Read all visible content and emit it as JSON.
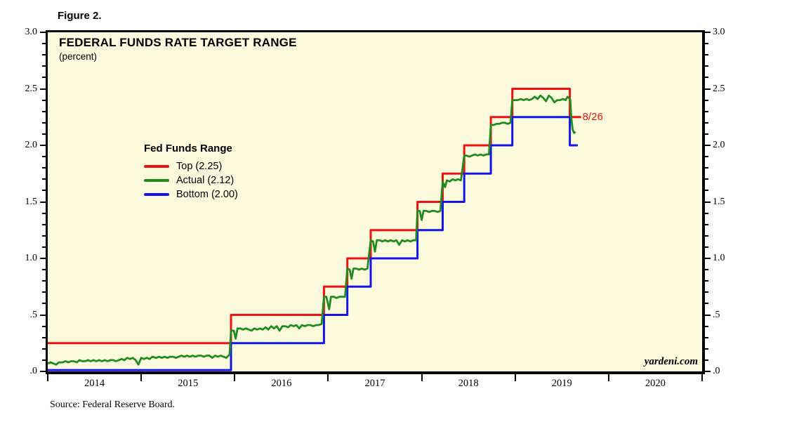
{
  "figure": {
    "label": "Figure 2."
  },
  "chart": {
    "title": "FEDERAL FUNDS RATE TARGET RANGE",
    "subtitle": "(percent)",
    "watermark": "yardeni.com",
    "source": "Source: Federal Reserve Board."
  },
  "legend": {
    "heading": "Fed Funds Range",
    "items": [
      {
        "label": "Top (2.25)",
        "color": "#f01010"
      },
      {
        "label": "Actual (2.12)",
        "color": "#1e8c1e"
      },
      {
        "label": "Bottom (2.00)",
        "color": "#1414f0"
      }
    ]
  },
  "chart_data": {
    "type": "line",
    "title": "FEDERAL FUNDS RATE TARGET RANGE (percent)",
    "background_color": "#fcfadc",
    "frame_color": "#000000",
    "grid": false,
    "x_axis": {
      "range": [
        2014,
        2021
      ],
      "tick_years": [
        2014,
        2015,
        2016,
        2017,
        2018,
        2019,
        2020,
        2021
      ],
      "year_labels": [
        "2014",
        "2015",
        "2016",
        "2017",
        "2018",
        "2019",
        "2020"
      ]
    },
    "y_axis": {
      "range": [
        0,
        3
      ],
      "minor_step": 0.1,
      "sides": "both",
      "major_ticks": [
        {
          "value": 3.0,
          "label": "3.0"
        },
        {
          "value": 2.5,
          "label": "2.5"
        },
        {
          "value": 2.0,
          "label": "2.0"
        },
        {
          "value": 1.5,
          "label": "1.5"
        },
        {
          "value": 1.0,
          "label": "1.0"
        },
        {
          "value": 0.5,
          "label": ".5"
        },
        {
          "value": 0.0,
          "label": ".0"
        }
      ]
    },
    "annotation": {
      "label": "8/26",
      "x": 2019.72,
      "y": 2.25,
      "color": "#f01010"
    },
    "series": [
      {
        "name": "Top",
        "current": 2.25,
        "color": "#f01010",
        "width": 3,
        "points": [
          [
            2014.0,
            0.25
          ],
          [
            2015.96,
            0.25
          ],
          [
            2015.96,
            0.5
          ],
          [
            2016.955,
            0.5
          ],
          [
            2016.955,
            0.75
          ],
          [
            2017.205,
            0.75
          ],
          [
            2017.205,
            1.0
          ],
          [
            2017.455,
            1.0
          ],
          [
            2017.455,
            1.25
          ],
          [
            2017.955,
            1.25
          ],
          [
            2017.955,
            1.5
          ],
          [
            2018.225,
            1.5
          ],
          [
            2018.225,
            1.75
          ],
          [
            2018.455,
            1.75
          ],
          [
            2018.455,
            2.0
          ],
          [
            2018.74,
            2.0
          ],
          [
            2018.74,
            2.25
          ],
          [
            2018.97,
            2.25
          ],
          [
            2018.97,
            2.5
          ],
          [
            2019.585,
            2.5
          ],
          [
            2019.585,
            2.25
          ],
          [
            2019.705,
            2.25
          ]
        ]
      },
      {
        "name": "Bottom",
        "current": 2.0,
        "color": "#1414f0",
        "width": 3,
        "points": [
          [
            2014.0,
            0.012
          ],
          [
            2015.96,
            0.012
          ],
          [
            2015.96,
            0.25
          ],
          [
            2016.955,
            0.25
          ],
          [
            2016.955,
            0.5
          ],
          [
            2017.205,
            0.5
          ],
          [
            2017.205,
            0.75
          ],
          [
            2017.455,
            0.75
          ],
          [
            2017.455,
            1.0
          ],
          [
            2017.955,
            1.0
          ],
          [
            2017.955,
            1.25
          ],
          [
            2018.225,
            1.25
          ],
          [
            2018.225,
            1.5
          ],
          [
            2018.455,
            1.5
          ],
          [
            2018.455,
            1.75
          ],
          [
            2018.74,
            1.75
          ],
          [
            2018.74,
            2.0
          ],
          [
            2018.97,
            2.0
          ],
          [
            2018.97,
            2.25
          ],
          [
            2019.585,
            2.25
          ],
          [
            2019.585,
            2.0
          ],
          [
            2019.67,
            2.0
          ]
        ]
      },
      {
        "name": "Actual",
        "current": 2.12,
        "color": "#1e8c1e",
        "width": 2.8,
        "points": [
          [
            2014.0,
            0.07
          ],
          [
            2014.03,
            0.08
          ],
          [
            2014.06,
            0.07
          ],
          [
            2014.09,
            0.06
          ],
          [
            2014.12,
            0.08
          ],
          [
            2014.16,
            0.08
          ],
          [
            2014.19,
            0.09
          ],
          [
            2014.22,
            0.08
          ],
          [
            2014.25,
            0.09
          ],
          [
            2014.28,
            0.09
          ],
          [
            2014.31,
            0.08
          ],
          [
            2014.34,
            0.1
          ],
          [
            2014.37,
            0.09
          ],
          [
            2014.4,
            0.09
          ],
          [
            2014.43,
            0.1
          ],
          [
            2014.46,
            0.09
          ],
          [
            2014.49,
            0.1
          ],
          [
            2014.52,
            0.09
          ],
          [
            2014.55,
            0.1
          ],
          [
            2014.58,
            0.09
          ],
          [
            2014.61,
            0.1
          ],
          [
            2014.64,
            0.09
          ],
          [
            2014.67,
            0.1
          ],
          [
            2014.7,
            0.1
          ],
          [
            2014.73,
            0.09
          ],
          [
            2014.76,
            0.1
          ],
          [
            2014.79,
            0.11
          ],
          [
            2014.82,
            0.1
          ],
          [
            2014.85,
            0.12
          ],
          [
            2014.88,
            0.11
          ],
          [
            2014.91,
            0.12
          ],
          [
            2014.94,
            0.1
          ],
          [
            2014.97,
            0.06
          ],
          [
            2015.0,
            0.12
          ],
          [
            2015.03,
            0.11
          ],
          [
            2015.06,
            0.12
          ],
          [
            2015.09,
            0.11
          ],
          [
            2015.12,
            0.13
          ],
          [
            2015.16,
            0.12
          ],
          [
            2015.19,
            0.13
          ],
          [
            2015.22,
            0.12
          ],
          [
            2015.25,
            0.13
          ],
          [
            2015.28,
            0.12
          ],
          [
            2015.31,
            0.13
          ],
          [
            2015.34,
            0.13
          ],
          [
            2015.37,
            0.12
          ],
          [
            2015.4,
            0.13
          ],
          [
            2015.43,
            0.14
          ],
          [
            2015.46,
            0.13
          ],
          [
            2015.49,
            0.14
          ],
          [
            2015.52,
            0.13
          ],
          [
            2015.55,
            0.14
          ],
          [
            2015.58,
            0.13
          ],
          [
            2015.61,
            0.14
          ],
          [
            2015.64,
            0.14
          ],
          [
            2015.67,
            0.13
          ],
          [
            2015.7,
            0.14
          ],
          [
            2015.73,
            0.14
          ],
          [
            2015.76,
            0.12
          ],
          [
            2015.79,
            0.14
          ],
          [
            2015.82,
            0.13
          ],
          [
            2015.85,
            0.14
          ],
          [
            2015.88,
            0.13
          ],
          [
            2015.91,
            0.12
          ],
          [
            2015.945,
            0.15
          ],
          [
            2015.96,
            0.36
          ],
          [
            2015.99,
            0.36
          ],
          [
            2016.01,
            0.29
          ],
          [
            2016.03,
            0.38
          ],
          [
            2016.06,
            0.38
          ],
          [
            2016.09,
            0.37
          ],
          [
            2016.12,
            0.38
          ],
          [
            2016.15,
            0.37
          ],
          [
            2016.18,
            0.36
          ],
          [
            2016.21,
            0.38
          ],
          [
            2016.24,
            0.37
          ],
          [
            2016.27,
            0.38
          ],
          [
            2016.3,
            0.37
          ],
          [
            2016.33,
            0.39
          ],
          [
            2016.36,
            0.37
          ],
          [
            2016.39,
            0.4
          ],
          [
            2016.42,
            0.38
          ],
          [
            2016.45,
            0.4
          ],
          [
            2016.48,
            0.36
          ],
          [
            2016.51,
            0.4
          ],
          [
            2016.54,
            0.4
          ],
          [
            2016.57,
            0.39
          ],
          [
            2016.6,
            0.41
          ],
          [
            2016.63,
            0.4
          ],
          [
            2016.66,
            0.41
          ],
          [
            2016.69,
            0.38
          ],
          [
            2016.72,
            0.41
          ],
          [
            2016.75,
            0.4
          ],
          [
            2016.78,
            0.41
          ],
          [
            2016.81,
            0.41
          ],
          [
            2016.84,
            0.4
          ],
          [
            2016.87,
            0.41
          ],
          [
            2016.9,
            0.41
          ],
          [
            2016.93,
            0.42
          ],
          [
            2016.955,
            0.66
          ],
          [
            2016.98,
            0.66
          ],
          [
            2017.01,
            0.55
          ],
          [
            2017.03,
            0.66
          ],
          [
            2017.06,
            0.66
          ],
          [
            2017.09,
            0.65
          ],
          [
            2017.12,
            0.66
          ],
          [
            2017.15,
            0.66
          ],
          [
            2017.18,
            0.66
          ],
          [
            2017.205,
            0.91
          ],
          [
            2017.23,
            0.9
          ],
          [
            2017.25,
            0.82
          ],
          [
            2017.27,
            0.91
          ],
          [
            2017.3,
            0.91
          ],
          [
            2017.33,
            0.9
          ],
          [
            2017.36,
            0.91
          ],
          [
            2017.39,
            0.9
          ],
          [
            2017.42,
            0.91
          ],
          [
            2017.455,
            1.16
          ],
          [
            2017.48,
            1.15
          ],
          [
            2017.5,
            1.06
          ],
          [
            2017.52,
            1.16
          ],
          [
            2017.55,
            1.16
          ],
          [
            2017.58,
            1.15
          ],
          [
            2017.61,
            1.16
          ],
          [
            2017.64,
            1.15
          ],
          [
            2017.67,
            1.16
          ],
          [
            2017.7,
            1.15
          ],
          [
            2017.73,
            1.16
          ],
          [
            2017.76,
            1.12
          ],
          [
            2017.79,
            1.16
          ],
          [
            2017.82,
            1.15
          ],
          [
            2017.85,
            1.16
          ],
          [
            2017.88,
            1.15
          ],
          [
            2017.91,
            1.16
          ],
          [
            2017.94,
            1.16
          ],
          [
            2017.955,
            1.42
          ],
          [
            2017.98,
            1.42
          ],
          [
            2018.0,
            1.34
          ],
          [
            2018.02,
            1.42
          ],
          [
            2018.05,
            1.42
          ],
          [
            2018.08,
            1.41
          ],
          [
            2018.11,
            1.42
          ],
          [
            2018.14,
            1.42
          ],
          [
            2018.17,
            1.41
          ],
          [
            2018.2,
            1.42
          ],
          [
            2018.225,
            1.68
          ],
          [
            2018.25,
            1.63
          ],
          [
            2018.27,
            1.69
          ],
          [
            2018.3,
            1.68
          ],
          [
            2018.33,
            1.7
          ],
          [
            2018.36,
            1.69
          ],
          [
            2018.39,
            1.7
          ],
          [
            2018.42,
            1.69
          ],
          [
            2018.455,
            1.91
          ],
          [
            2018.48,
            1.91
          ],
          [
            2018.51,
            1.9
          ],
          [
            2018.54,
            1.91
          ],
          [
            2018.57,
            1.92
          ],
          [
            2018.6,
            1.91
          ],
          [
            2018.63,
            1.92
          ],
          [
            2018.66,
            1.91
          ],
          [
            2018.69,
            1.92
          ],
          [
            2018.72,
            1.92
          ],
          [
            2018.74,
            2.18
          ],
          [
            2018.77,
            2.18
          ],
          [
            2018.8,
            2.19
          ],
          [
            2018.83,
            2.19
          ],
          [
            2018.86,
            2.2
          ],
          [
            2018.89,
            2.2
          ],
          [
            2018.92,
            2.19
          ],
          [
            2018.95,
            2.2
          ],
          [
            2018.97,
            2.4
          ],
          [
            2019.0,
            2.4
          ],
          [
            2019.03,
            2.4
          ],
          [
            2019.06,
            2.41
          ],
          [
            2019.09,
            2.4
          ],
          [
            2019.12,
            2.41
          ],
          [
            2019.15,
            2.4
          ],
          [
            2019.18,
            2.41
          ],
          [
            2019.21,
            2.43
          ],
          [
            2019.24,
            2.41
          ],
          [
            2019.27,
            2.44
          ],
          [
            2019.3,
            2.42
          ],
          [
            2019.33,
            2.39
          ],
          [
            2019.36,
            2.44
          ],
          [
            2019.39,
            2.42
          ],
          [
            2019.42,
            2.38
          ],
          [
            2019.45,
            2.4
          ],
          [
            2019.48,
            2.4
          ],
          [
            2019.51,
            2.41
          ],
          [
            2019.54,
            2.4
          ],
          [
            2019.56,
            2.43
          ],
          [
            2019.575,
            2.42
          ],
          [
            2019.59,
            2.4
          ],
          [
            2019.6,
            2.25
          ],
          [
            2019.615,
            2.14
          ],
          [
            2019.63,
            2.11
          ],
          [
            2019.645,
            2.12
          ]
        ]
      }
    ]
  }
}
